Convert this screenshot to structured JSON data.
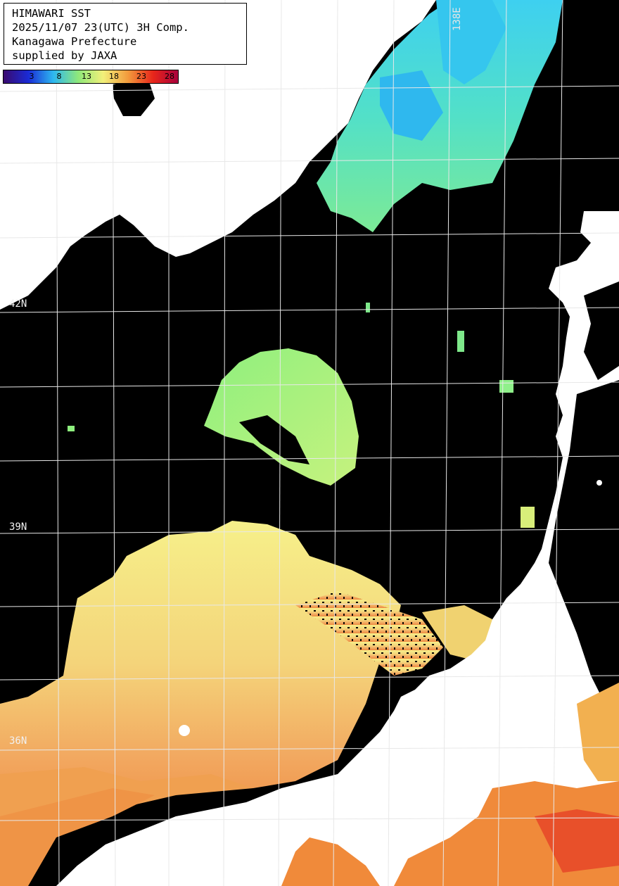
{
  "header": {
    "line1": "HIMAWARI SST",
    "line2": "2025/11/07 23(UTC) 3H Comp.",
    "line3": "Kanagawa Prefecture",
    "line4": "supplied by JAXA"
  },
  "legend": {
    "ticks": [
      "3",
      "8",
      "13",
      "18",
      "23",
      "28"
    ],
    "colors": [
      "#3a0a6e",
      "#1a2bd6",
      "#2db8f0",
      "#8fe87a",
      "#f2f07a",
      "#f29a3c",
      "#e8261a",
      "#a8003c"
    ]
  },
  "grid_labels": {
    "lat_42": "42N",
    "lat_39": "39N",
    "lat_36": "36N",
    "lon_138": "138E"
  },
  "colors": {
    "land": "#ffffff",
    "no_data": "#000000",
    "grid": "#e8e8e8"
  }
}
